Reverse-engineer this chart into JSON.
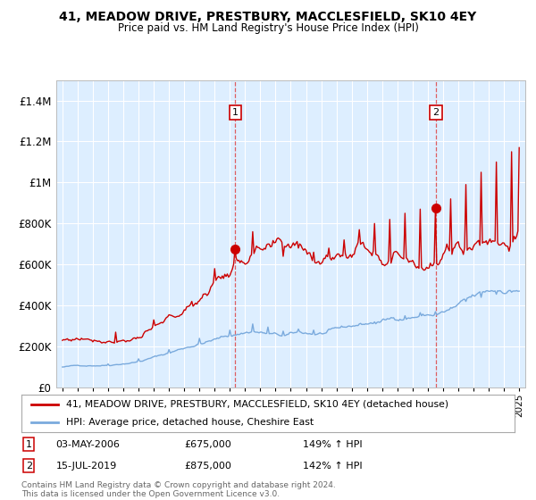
{
  "title": "41, MEADOW DRIVE, PRESTBURY, MACCLESFIELD, SK10 4EY",
  "subtitle": "Price paid vs. HM Land Registry's House Price Index (HPI)",
  "plot_bg_color": "#ddeeff",
  "grid_color": "#ffffff",
  "red_line_color": "#cc0000",
  "blue_line_color": "#7aaadd",
  "marker1_x": 2006.35,
  "marker1_y": 675000,
  "marker2_x": 2019.54,
  "marker2_y": 875000,
  "annotation1_date": "03-MAY-2006",
  "annotation1_price": "£675,000",
  "annotation1_hpi": "149% ↑ HPI",
  "annotation2_date": "15-JUL-2019",
  "annotation2_price": "£875,000",
  "annotation2_hpi": "142% ↑ HPI",
  "legend_label_red": "41, MEADOW DRIVE, PRESTBURY, MACCLESFIELD, SK10 4EY (detached house)",
  "legend_label_blue": "HPI: Average price, detached house, Cheshire East",
  "footer": "Contains HM Land Registry data © Crown copyright and database right 2024.\nThis data is licensed under the Open Government Licence v3.0.",
  "xmin": 1994.6,
  "xmax": 2025.4,
  "ymin": 0,
  "ymax": 1500000,
  "yticks": [
    0,
    200000,
    400000,
    600000,
    800000,
    1000000,
    1200000,
    1400000
  ]
}
